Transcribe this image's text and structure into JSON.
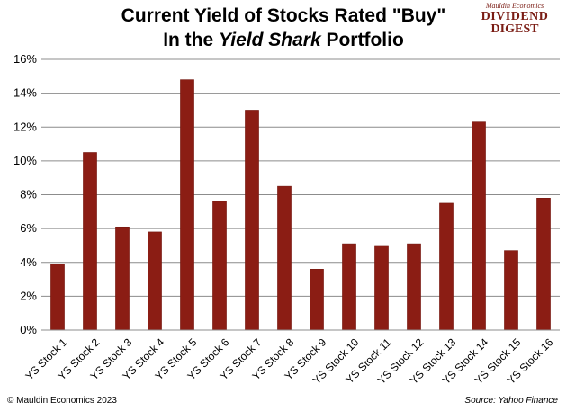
{
  "header": {
    "title_line1": "Current Yield of Stocks Rated \"Buy\"",
    "title_line2_prefix": "In the ",
    "title_line2_italic": "Yield Shark",
    "title_line2_suffix": " Portfolio"
  },
  "logo": {
    "line1": "Mauldin Economics",
    "line2": "DIVIDEND",
    "line3": "DIGEST"
  },
  "footer": {
    "left": "© Mauldin Economics 2023",
    "right": "Source: Yahoo Finance"
  },
  "colors": {
    "bar": "#8b1d14",
    "bar_stroke": "#6e150e",
    "grid": "#8c8c8c"
  },
  "chart_data": {
    "type": "bar",
    "categories": [
      "YS Stock 1",
      "YS Stock 2",
      "YS Stock 3",
      "YS Stock 4",
      "YS Stock 5",
      "YS Stock 6",
      "YS Stock 7",
      "YS Stock 8",
      "YS Stock 9",
      "YS Stock 10",
      "YS Stock 11",
      "YS Stock 12",
      "YS Stock 13",
      "YS Stock 14",
      "YS Stock 15",
      "YS Stock 16"
    ],
    "values": [
      3.9,
      10.5,
      6.1,
      5.8,
      14.8,
      7.6,
      13.0,
      8.5,
      3.6,
      5.1,
      5.0,
      5.1,
      7.5,
      12.3,
      4.7,
      7.8
    ],
    "ylim": [
      0,
      16
    ],
    "yticks": [
      "0%",
      "2%",
      "4%",
      "6%",
      "8%",
      "10%",
      "12%",
      "14%",
      "16%"
    ],
    "grid": true,
    "legend": "none"
  }
}
